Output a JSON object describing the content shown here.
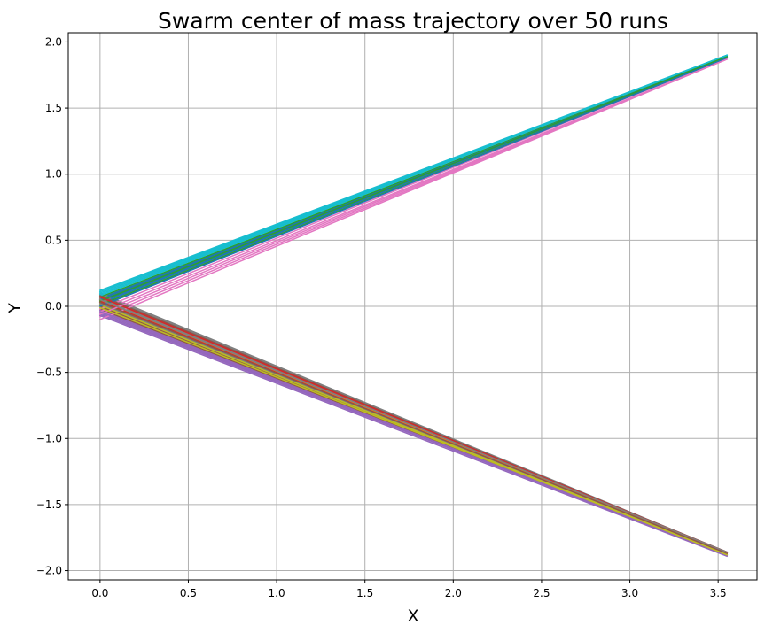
{
  "chart_data": {
    "type": "line",
    "title": "Swarm center of mass trajectory over 50 runs",
    "xlabel": "X",
    "ylabel": "Y",
    "xlim": [
      -0.18,
      3.72
    ],
    "ylim": [
      -2.07,
      2.07
    ],
    "xticks": [
      0.0,
      0.5,
      1.0,
      1.5,
      2.0,
      2.5,
      3.0,
      3.5
    ],
    "xtick_labels": [
      "0.0",
      "0.5",
      "1.0",
      "1.5",
      "2.0",
      "2.5",
      "3.0",
      "3.5"
    ],
    "yticks": [
      -2.0,
      -1.5,
      -1.0,
      -0.5,
      0.0,
      0.5,
      1.0,
      1.5,
      2.0
    ],
    "ytick_labels": [
      "−2.0",
      "−1.5",
      "−1.0",
      "−0.5",
      "0.0",
      "0.5",
      "1.0",
      "1.5",
      "2.0"
    ],
    "grid": true,
    "legend": false,
    "colors": [
      "#1f77b4",
      "#ff7f0e",
      "#2ca02c",
      "#d62728",
      "#9467bd",
      "#8c564b",
      "#e377c2",
      "#7f7f7f",
      "#bcbd22",
      "#17becf"
    ],
    "series": [
      {
        "x": [
          0.0,
          3.55
        ],
        "y": [
          0.06,
          1.89
        ]
      },
      {
        "x": [
          0.0,
          3.55
        ],
        "y": [
          0.02,
          -1.88
        ]
      },
      {
        "x": [
          0.0,
          3.55
        ],
        "y": [
          0.04,
          1.88
        ]
      },
      {
        "x": [
          0.0,
          3.55
        ],
        "y": [
          0.08,
          -1.86
        ]
      },
      {
        "x": [
          0.0,
          3.55
        ],
        "y": [
          -0.03,
          -1.89
        ]
      },
      {
        "x": [
          0.0,
          3.55
        ],
        "y": [
          0.05,
          -1.87
        ]
      },
      {
        "x": [
          0.0,
          3.55
        ],
        "y": [
          -0.08,
          1.87
        ]
      },
      {
        "x": [
          0.0,
          3.55
        ],
        "y": [
          0.1,
          -1.86
        ]
      },
      {
        "x": [
          0.0,
          3.55
        ],
        "y": [
          0.01,
          -1.87
        ]
      },
      {
        "x": [
          0.0,
          3.55
        ],
        "y": [
          0.11,
          1.9
        ]
      },
      {
        "x": [
          0.0,
          3.55
        ],
        "y": [
          0.03,
          1.89
        ]
      },
      {
        "x": [
          0.0,
          3.55
        ],
        "y": [
          0.07,
          -1.87
        ]
      },
      {
        "x": [
          0.0,
          3.55
        ],
        "y": [
          0.05,
          1.88
        ]
      },
      {
        "x": [
          0.0,
          3.55
        ],
        "y": [
          0.06,
          -1.87
        ]
      },
      {
        "x": [
          0.0,
          3.55
        ],
        "y": [
          -0.05,
          -1.88
        ]
      },
      {
        "x": [
          0.0,
          3.55
        ],
        "y": [
          -0.02,
          -1.88
        ]
      },
      {
        "x": [
          0.0,
          3.55
        ],
        "y": [
          -0.04,
          1.87
        ]
      },
      {
        "x": [
          0.0,
          3.55
        ],
        "y": [
          0.09,
          -1.86
        ]
      },
      {
        "x": [
          0.0,
          3.55
        ],
        "y": [
          0.03,
          -1.87
        ]
      },
      {
        "x": [
          0.0,
          3.55
        ],
        "y": [
          0.09,
          1.9
        ]
      },
      {
        "x": [
          0.0,
          3.55
        ],
        "y": [
          0.02,
          1.89
        ]
      },
      {
        "x": [
          0.0,
          3.55
        ],
        "y": [
          0.04,
          -1.87
        ]
      },
      {
        "x": [
          0.0,
          3.55
        ],
        "y": [
          0.07,
          1.89
        ]
      },
      {
        "x": [
          0.0,
          3.55
        ],
        "y": [
          0.0,
          -1.88
        ]
      },
      {
        "x": [
          0.0,
          3.55
        ],
        "y": [
          -0.06,
          -1.88
        ]
      },
      {
        "x": [
          0.0,
          3.55
        ],
        "y": [
          0.0,
          -1.88
        ]
      },
      {
        "x": [
          0.0,
          3.55
        ],
        "y": [
          -0.02,
          1.88
        ]
      },
      {
        "x": [
          0.0,
          3.55
        ],
        "y": [
          0.06,
          -1.87
        ]
      },
      {
        "x": [
          0.0,
          3.55
        ],
        "y": [
          0.02,
          -1.87
        ]
      },
      {
        "x": [
          0.0,
          3.55
        ],
        "y": [
          0.08,
          1.9
        ]
      },
      {
        "x": [
          0.0,
          3.55
        ],
        "y": [
          0.05,
          1.89
        ]
      },
      {
        "x": [
          0.0,
          3.55
        ],
        "y": [
          0.03,
          -1.87
        ]
      },
      {
        "x": [
          0.0,
          3.55
        ],
        "y": [
          0.01,
          1.88
        ]
      },
      {
        "x": [
          0.0,
          3.55
        ],
        "y": [
          0.04,
          -1.87
        ]
      },
      {
        "x": [
          0.0,
          3.55
        ],
        "y": [
          -0.07,
          -1.89
        ]
      },
      {
        "x": [
          0.0,
          3.55
        ],
        "y": [
          0.08,
          -1.86
        ]
      },
      {
        "x": [
          0.0,
          3.55
        ],
        "y": [
          -0.1,
          1.87
        ]
      },
      {
        "x": [
          0.0,
          3.55
        ],
        "y": [
          0.02,
          -1.87
        ]
      },
      {
        "x": [
          0.0,
          3.55
        ],
        "y": [
          0.01,
          -1.88
        ]
      },
      {
        "x": [
          0.0,
          3.55
        ],
        "y": [
          0.1,
          1.9
        ]
      },
      {
        "x": [
          0.0,
          3.55
        ],
        "y": [
          0.0,
          1.88
        ]
      },
      {
        "x": [
          0.0,
          3.55
        ],
        "y": [
          0.05,
          -1.87
        ]
      },
      {
        "x": [
          0.0,
          3.55
        ],
        "y": [
          0.04,
          1.89
        ]
      },
      {
        "x": [
          0.0,
          3.55
        ],
        "y": [
          0.07,
          -1.86
        ]
      },
      {
        "x": [
          0.0,
          3.55
        ],
        "y": [
          -0.04,
          -1.88
        ]
      },
      {
        "x": [
          0.0,
          3.55
        ],
        "y": [
          0.03,
          -1.87
        ]
      },
      {
        "x": [
          0.0,
          3.55
        ],
        "y": [
          -0.06,
          1.87
        ]
      },
      {
        "x": [
          0.0,
          3.55
        ],
        "y": [
          0.05,
          -1.86
        ]
      },
      {
        "x": [
          0.0,
          3.55
        ],
        "y": [
          -0.01,
          -1.88
        ]
      },
      {
        "x": [
          0.0,
          3.55
        ],
        "y": [
          0.12,
          1.9
        ]
      }
    ]
  }
}
